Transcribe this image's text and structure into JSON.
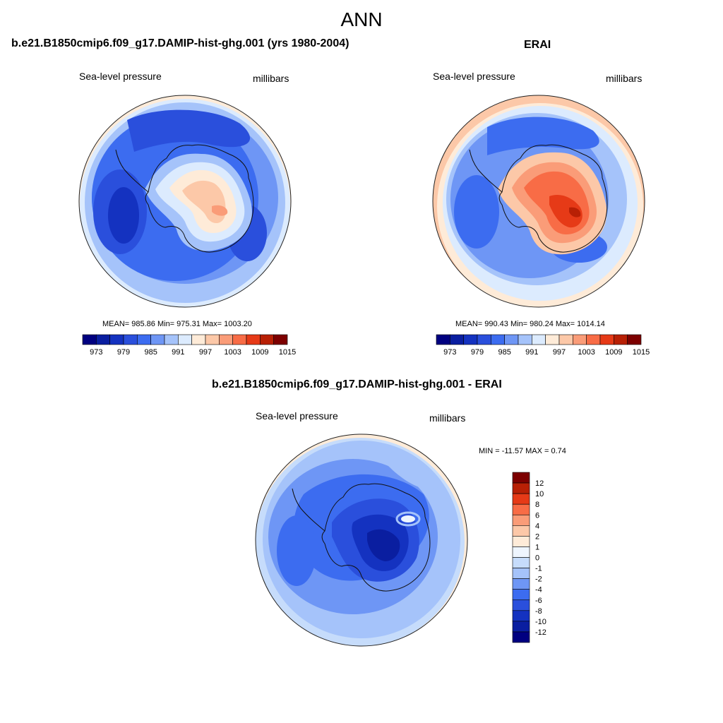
{
  "page": {
    "title": "ANN"
  },
  "chart_data": [
    {
      "type": "heatmap",
      "projection": "south polar stereographic",
      "title": "b.e21.B1850cmip6.f09_g17.DAMIP-hist-ghg.001 (yrs 1980-2004)",
      "left_label": "Sea-level pressure",
      "right_label": "millibars",
      "stats": "MEAN= 985.86  Min= 975.31  Max= 1003.20",
      "mean": 985.86,
      "min": 975.31,
      "max": 1003.2,
      "colorbar_levels": [
        973,
        976,
        979,
        982,
        985,
        988,
        991,
        994,
        997,
        1000,
        1003,
        1006,
        1009,
        1012,
        1015
      ],
      "colorbar_ticks": [
        "973",
        "979",
        "985",
        "991",
        "997",
        "1003",
        "1009",
        "1015"
      ],
      "colorbar_colors": [
        "#000080",
        "#0a1ea0",
        "#1432c0",
        "#2a4fdc",
        "#3c6cf0",
        "#6e96f5",
        "#a5c3fa",
        "#dcebfe",
        "#feebd8",
        "#fcc8a8",
        "#fa9c78",
        "#f86c46",
        "#e63a17",
        "#b82005",
        "#7d0000"
      ]
    },
    {
      "type": "heatmap",
      "projection": "south polar stereographic",
      "title": "ERAI",
      "left_label": "Sea-level pressure",
      "right_label": "millibars",
      "stats": "MEAN= 990.43  Min= 980.24  Max= 1014.14",
      "mean": 990.43,
      "min": 980.24,
      "max": 1014.14,
      "colorbar_levels": [
        973,
        976,
        979,
        982,
        985,
        988,
        991,
        994,
        997,
        1000,
        1003,
        1006,
        1009,
        1012,
        1015
      ],
      "colorbar_ticks": [
        "973",
        "979",
        "985",
        "991",
        "997",
        "1003",
        "1009",
        "1015"
      ],
      "colorbar_colors": [
        "#000080",
        "#0a1ea0",
        "#1432c0",
        "#2a4fdc",
        "#3c6cf0",
        "#6e96f5",
        "#a5c3fa",
        "#dcebfe",
        "#feebd8",
        "#fcc8a8",
        "#fa9c78",
        "#f86c46",
        "#e63a17",
        "#b82005",
        "#7d0000"
      ]
    },
    {
      "type": "heatmap",
      "projection": "south polar stereographic",
      "title": "b.e21.B1850cmip6.f09_g17.DAMIP-hist-ghg.001 - ERAI",
      "left_label": "Sea-level pressure",
      "right_label": "millibars",
      "stats": "MIN = -11.57 MAX =   0.74",
      "min": -11.57,
      "max": 0.74,
      "colorbar_ticks": [
        "12",
        "10",
        "8",
        "6",
        "4",
        "2",
        "1",
        "0",
        "-1",
        "-2",
        "-4",
        "-6",
        "-8",
        "-10",
        "-12"
      ],
      "colorbar_colors": [
        "#7d0000",
        "#b82005",
        "#e63a17",
        "#f86c46",
        "#fa9c78",
        "#fcc8a8",
        "#feebd8",
        "#eef5fe",
        "#c6dcfb",
        "#a5c3fa",
        "#6e96f5",
        "#3c6cf0",
        "#2a4fdc",
        "#1432c0",
        "#0a1ea0",
        "#000080"
      ]
    }
  ]
}
